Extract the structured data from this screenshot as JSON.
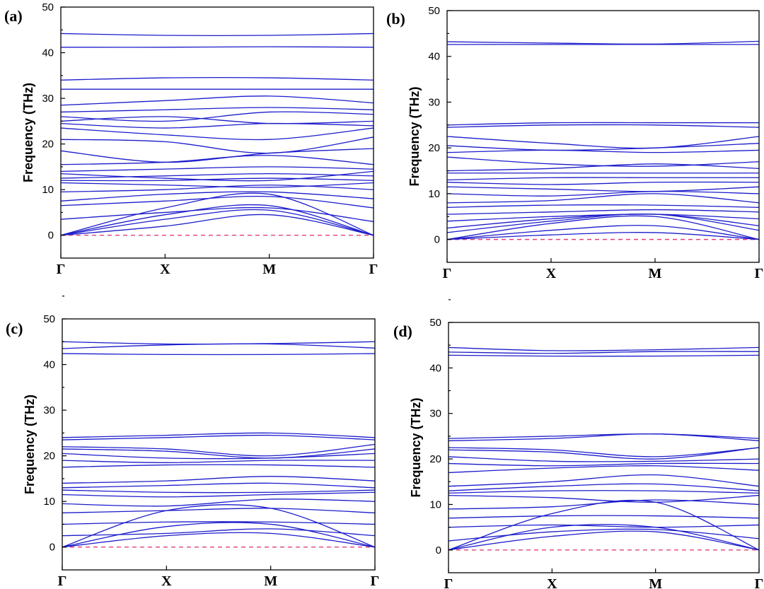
{
  "chart_data": [
    {
      "panel": "(a)",
      "type": "line",
      "ylabel": "Frequency (THz)",
      "ylim": [
        -5,
        50
      ],
      "yticks": [
        "0",
        "10",
        "20",
        "30",
        "40",
        "50"
      ],
      "kpoints": [
        "Γ",
        "X",
        "M",
        "Γ"
      ],
      "zero_line": 0,
      "bands": [
        [
          0,
          2,
          4.5,
          0
        ],
        [
          0,
          3.5,
          5.5,
          0
        ],
        [
          0,
          4.5,
          6.5,
          0
        ],
        [
          0,
          6,
          9,
          0
        ],
        [
          3.5,
          5,
          6,
          3
        ],
        [
          6.5,
          7.5,
          8.5,
          6
        ],
        [
          7.5,
          9,
          9.5,
          8
        ],
        [
          9.5,
          10,
          11,
          10
        ],
        [
          11.5,
          11,
          10.5,
          11.5
        ],
        [
          12,
          12,
          12.5,
          12
        ],
        [
          12.5,
          13,
          13.5,
          13
        ],
        [
          13.5,
          12.5,
          12,
          14
        ],
        [
          14,
          14.5,
          15,
          14.5
        ],
        [
          15.5,
          16,
          17.5,
          15.5
        ],
        [
          18.5,
          16,
          18,
          19
        ],
        [
          21,
          20.5,
          18,
          21.5
        ],
        [
          23.5,
          22,
          21,
          23.5
        ],
        [
          24.5,
          23.5,
          24.5,
          24
        ],
        [
          25,
          26,
          24.5,
          25
        ],
        [
          26,
          25,
          27,
          26.5
        ],
        [
          27,
          27.5,
          28,
          27.5
        ],
        [
          28.5,
          29.5,
          30.5,
          29
        ],
        [
          32,
          32,
          32,
          32
        ],
        [
          34,
          34.5,
          34.5,
          34
        ],
        [
          41.2,
          41.2,
          41.3,
          41.2
        ],
        [
          44.2,
          43.8,
          43.8,
          44.2
        ]
      ]
    },
    {
      "panel": "(b)",
      "type": "line",
      "ylabel": "Frequency (THz)",
      "ylim": [
        -5,
        50
      ],
      "yticks": [
        "0",
        "10",
        "20",
        "30",
        "40",
        "50"
      ],
      "kpoints": [
        "Γ",
        "X",
        "M",
        "Γ"
      ],
      "zero_line": 0,
      "bands": [
        [
          0,
          1,
          1.5,
          0
        ],
        [
          0,
          2,
          3,
          0
        ],
        [
          0,
          3.5,
          5,
          0
        ],
        [
          1.5,
          4,
          5.5,
          2
        ],
        [
          2.5,
          4.5,
          5.5,
          3
        ],
        [
          4,
          5,
          5.5,
          4.5
        ],
        [
          5.5,
          6,
          6.5,
          6
        ],
        [
          7,
          7.5,
          7.5,
          7
        ],
        [
          8,
          8.5,
          10,
          8
        ],
        [
          10,
          9.5,
          10.5,
          10
        ],
        [
          11.5,
          11,
          10.5,
          11.5
        ],
        [
          12.5,
          12,
          12.5,
          12.5
        ],
        [
          13,
          13.5,
          13.5,
          13.5
        ],
        [
          14.5,
          14.5,
          14.5,
          14.5
        ],
        [
          15,
          15.5,
          16.5,
          15.5
        ],
        [
          18,
          16.5,
          16,
          17
        ],
        [
          19,
          19.5,
          19,
          19.5
        ],
        [
          20.5,
          19.5,
          20,
          21
        ],
        [
          22.5,
          21,
          20,
          22.5
        ],
        [
          24.5,
          25,
          25,
          24.5
        ],
        [
          25,
          25.5,
          25.5,
          25.5
        ],
        [
          42.6,
          42.6,
          42.6,
          42.6
        ],
        [
          43.2,
          42.9,
          42.7,
          43.3
        ]
      ]
    },
    {
      "panel": "(c)",
      "type": "line",
      "ylabel": "Frequency (THz)",
      "ylim": [
        -5,
        50
      ],
      "yticks": [
        "0",
        "10",
        "20",
        "30",
        "40",
        "50"
      ],
      "kpoints": [
        "Γ",
        "X",
        "M",
        "Γ"
      ],
      "zero_line": 0,
      "bands": [
        [
          0,
          2.5,
          3,
          0
        ],
        [
          0,
          4.5,
          5,
          0
        ],
        [
          0,
          8,
          8.5,
          0
        ],
        [
          2.5,
          3,
          4,
          2.5
        ],
        [
          5,
          5.5,
          5.5,
          5
        ],
        [
          7.5,
          8,
          8.5,
          7.5
        ],
        [
          9.5,
          9,
          10.5,
          10
        ],
        [
          11.5,
          11,
          11.5,
          12
        ],
        [
          12.5,
          12,
          12,
          12.5
        ],
        [
          13,
          13.5,
          14,
          13
        ],
        [
          14,
          14.5,
          15.5,
          14.5
        ],
        [
          17.5,
          18,
          18,
          17.5
        ],
        [
          19,
          18.5,
          19,
          19
        ],
        [
          20.5,
          19.5,
          19.5,
          20.5
        ],
        [
          21.5,
          21,
          19.5,
          21.5
        ],
        [
          22,
          21.5,
          20,
          22.5
        ],
        [
          23.5,
          24,
          24.5,
          23.5
        ],
        [
          24,
          24.5,
          25,
          24
        ],
        [
          42.4,
          42.2,
          42.2,
          42.4
        ],
        [
          43.5,
          44.3,
          44.5,
          43.6
        ],
        [
          45,
          44.5,
          44.6,
          45
        ]
      ]
    },
    {
      "panel": "(d)",
      "type": "line",
      "ylabel": "Frequency (THz)",
      "ylim": [
        -5,
        50
      ],
      "yticks": [
        "0",
        "10",
        "20",
        "30",
        "40",
        "50"
      ],
      "kpoints": [
        "Γ",
        "X",
        "M",
        "Γ"
      ],
      "zero_line": 0,
      "bands": [
        [
          0,
          3,
          4,
          0
        ],
        [
          0,
          5,
          5,
          0
        ],
        [
          0,
          8,
          10.5,
          0
        ],
        [
          2,
          4,
          4.5,
          2.5
        ],
        [
          5,
          5.5,
          5,
          5.5
        ],
        [
          7,
          7.5,
          7.5,
          7
        ],
        [
          9,
          9.5,
          11,
          10
        ],
        [
          12,
          11.5,
          10.5,
          12
        ],
        [
          12.5,
          13,
          13,
          12.5
        ],
        [
          13,
          14,
          14.5,
          13
        ],
        [
          14,
          15,
          16.5,
          14
        ],
        [
          17,
          18,
          18.5,
          17.5
        ],
        [
          19,
          18.5,
          19,
          19
        ],
        [
          20.5,
          19.5,
          19.5,
          20
        ],
        [
          22,
          21.5,
          20,
          22.5
        ],
        [
          22.5,
          22,
          20.5,
          22.5
        ],
        [
          24,
          24.5,
          25.5,
          24
        ],
        [
          24.5,
          25,
          25.5,
          24.5
        ],
        [
          42.8,
          42.6,
          42.6,
          42.8
        ],
        [
          43.5,
          43.2,
          43.6,
          43.6
        ],
        [
          44.5,
          43.8,
          44,
          44.5
        ]
      ]
    }
  ]
}
